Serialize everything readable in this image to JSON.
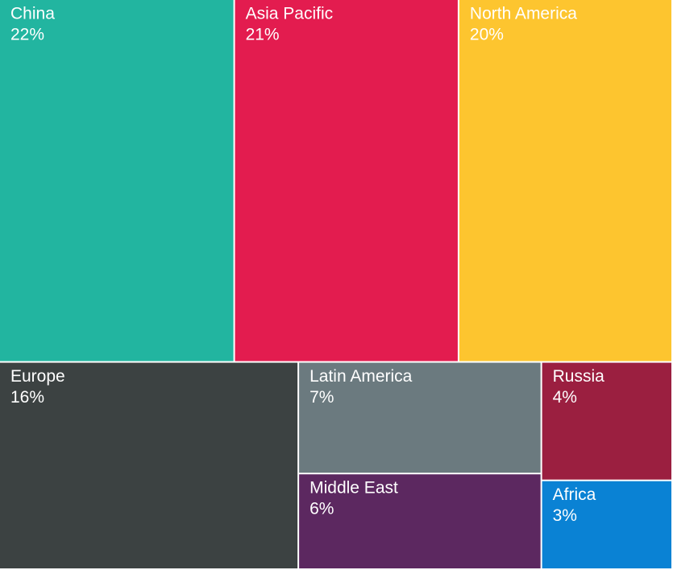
{
  "chart_data": {
    "type": "treemap",
    "categories": [
      "China",
      "Asia Pacific",
      "North America",
      "Europe",
      "Latin America",
      "Middle East",
      "Russia",
      "Africa"
    ],
    "values": [
      22,
      21,
      20,
      16,
      7,
      6,
      4,
      3
    ],
    "value_labels": [
      "22%",
      "21%",
      "20%",
      "16%",
      "7%",
      "6%",
      "4%",
      "3%"
    ],
    "colors": [
      "#22b5a0",
      "#e31c4f",
      "#fdc52f",
      "#3c4242",
      "#6b7a7f",
      "#5c2860",
      "#9b1f40",
      "#0a82d4"
    ]
  }
}
